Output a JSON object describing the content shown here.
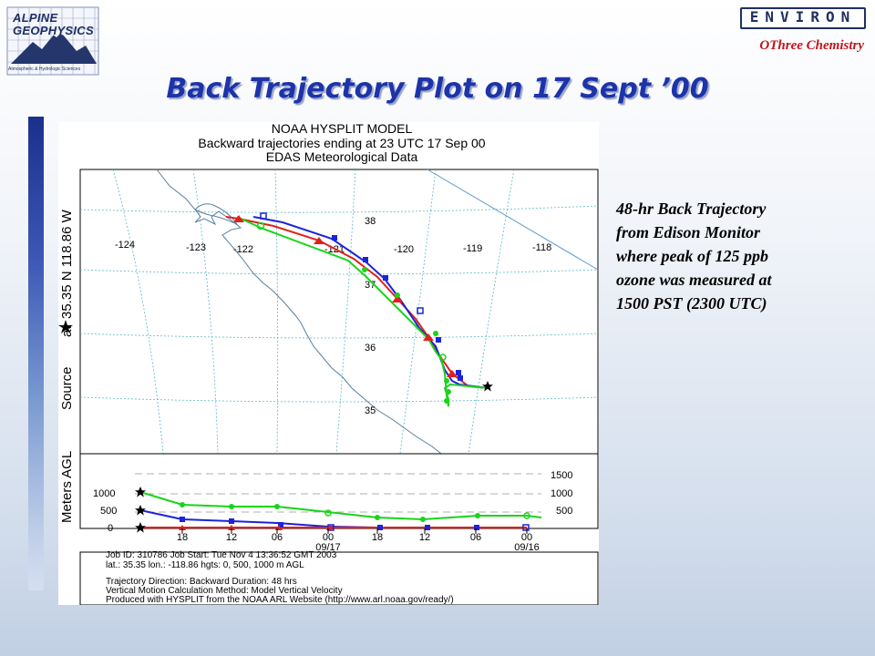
{
  "logo_left": {
    "line1": "ALPINE",
    "line2": "GEOPHYSICS",
    "tagline": "Atmospheric & Hydrologic Sciences"
  },
  "logo_right": {
    "brand": "ENVIRON",
    "tagline": "OThree Chemistry"
  },
  "slide_title": "Back Trajectory Plot on 17 Sept ’00",
  "caption": {
    "lines": [
      "48-hr Back Trajectory",
      "from Edison Monitor",
      "where peak of 125 ppb",
      "ozone was measured at",
      "1500 PST (2300 UTC)"
    ]
  },
  "plot": {
    "header": [
      "NOAA HYSPLIT MODEL",
      "Backward trajectories ending at 23 UTC 17 Sep 00",
      "EDAS Meteorological Data"
    ],
    "side_label": {
      "source": "Source",
      "at": "at",
      "coords": "35.35 N  118.86 W"
    },
    "agl_label": "Meters AGL",
    "lon_labels": [
      "-124",
      "-123",
      "-122",
      "-121",
      "-120",
      "-119",
      "-118"
    ],
    "lat_labels": [
      "38",
      "37",
      "36",
      "35"
    ],
    "height_left_ticks": [
      "1000",
      "500",
      "0"
    ],
    "height_right_ticks": [
      "1500",
      "1000",
      "500"
    ],
    "time_ticks": [
      "18",
      "12",
      "06",
      "00",
      "18",
      "12",
      "06",
      "00"
    ],
    "date_labels": [
      "09/17",
      "09/16"
    ],
    "footer": [
      "Job ID: 310786          Job Start: Tue Nov  4 13:36:52 GMT 2003",
      "lat.: 35.35  lon.: -118.86  hgts: 0, 500, 1000 m AGL",
      "",
      "Trajectory Direction: Backward          Duration: 48 hrs",
      "Vertical Motion Calculation Method: Model Vertical Velocity",
      "Produced with HYSPLIT from the NOAA ARL Website (http://www.arl.noaa.gov/ready/)"
    ],
    "colors": {
      "red": "#e0201c",
      "blue": "#1c23d8",
      "green": "#19d419",
      "coast": "#5a7fa0",
      "grid": "#5ab8c8",
      "text": "#000000"
    }
  }
}
